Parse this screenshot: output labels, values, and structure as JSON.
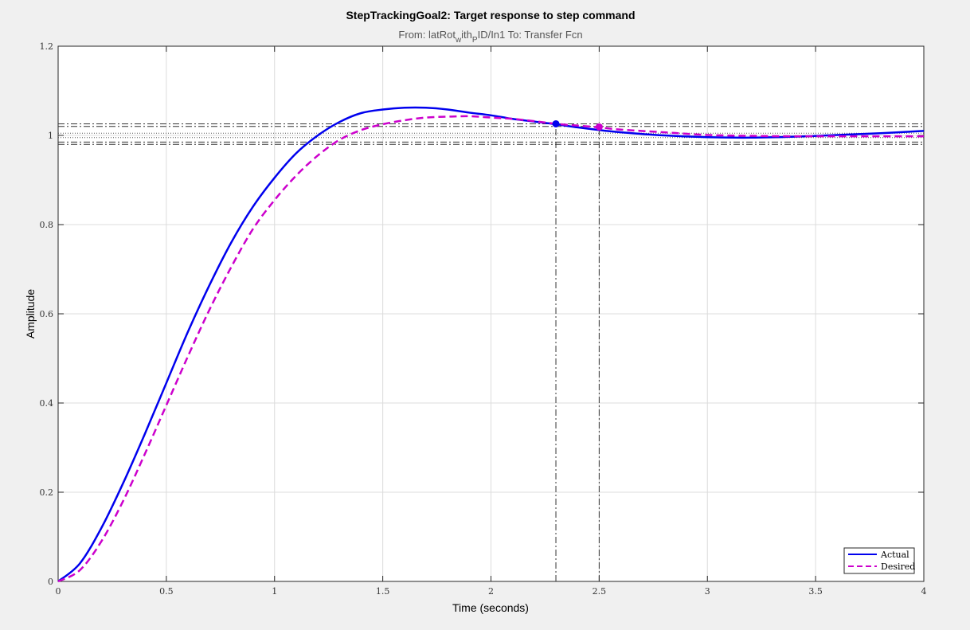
{
  "chart_data": {
    "type": "line",
    "title": "StepTrackingGoal2: Target response to step command",
    "subtitle": {
      "prefix": "From: latRot",
      "sub1": "w",
      "mid": "ith",
      "sub2": "P",
      "suffix": "ID/In1  To: Transfer Fcn"
    },
    "xlabel": "Time (seconds)",
    "ylabel": "Amplitude",
    "xlim": [
      0,
      4
    ],
    "ylim": [
      0,
      1.2
    ],
    "xticks": [
      "0",
      "0.5",
      "1",
      "1.5",
      "2",
      "2.5",
      "3",
      "3.5",
      "4"
    ],
    "yticks": [
      "0",
      "0.2",
      "0.4",
      "0.6",
      "0.8",
      "1",
      "1.2"
    ],
    "grid": true,
    "legend_position": "bottom-right",
    "series": [
      {
        "name": "Actual",
        "color": "#0000ee",
        "style": "solid",
        "x": [
          0,
          0.1,
          0.2,
          0.3,
          0.4,
          0.5,
          0.6,
          0.7,
          0.8,
          0.9,
          1.0,
          1.1,
          1.2,
          1.3,
          1.4,
          1.5,
          1.6,
          1.7,
          1.8,
          1.9,
          2.0,
          2.1,
          2.2,
          2.3,
          2.4,
          2.5,
          2.6,
          2.8,
          3.0,
          3.2,
          3.4,
          3.6,
          3.8,
          4.0
        ],
        "y": [
          0,
          0.04,
          0.12,
          0.22,
          0.33,
          0.445,
          0.56,
          0.665,
          0.76,
          0.84,
          0.905,
          0.96,
          1.0,
          1.03,
          1.05,
          1.058,
          1.062,
          1.062,
          1.058,
          1.051,
          1.045,
          1.037,
          1.031,
          1.025,
          1.018,
          1.012,
          1.007,
          1.0,
          0.996,
          0.995,
          0.997,
          1.001,
          1.005,
          1.01
        ]
      },
      {
        "name": "Desired",
        "color": "#cc00cc",
        "style": "dashed",
        "x": [
          0,
          0.1,
          0.2,
          0.3,
          0.4,
          0.5,
          0.6,
          0.7,
          0.8,
          0.9,
          1.0,
          1.1,
          1.2,
          1.3,
          1.4,
          1.5,
          1.6,
          1.7,
          1.8,
          1.9,
          2.0,
          2.1,
          2.2,
          2.3,
          2.4,
          2.5,
          2.6,
          2.8,
          3.0,
          3.2,
          3.4,
          3.6,
          3.8,
          4.0
        ],
        "y": [
          0,
          0.025,
          0.09,
          0.18,
          0.285,
          0.395,
          0.505,
          0.61,
          0.705,
          0.79,
          0.855,
          0.91,
          0.955,
          0.99,
          1.012,
          1.025,
          1.034,
          1.04,
          1.042,
          1.043,
          1.04,
          1.037,
          1.032,
          1.026,
          1.022,
          1.018,
          1.013,
          1.007,
          1.001,
          0.999,
          0.998,
          0.998,
          0.998,
          0.998
        ]
      }
    ],
    "markers": [
      {
        "x": 2.3,
        "y": 1.026,
        "color": "#0000ee"
      },
      {
        "x": 2.5,
        "y": 1.019,
        "color": "#cc00cc"
      }
    ],
    "hlines_dashdot": [
      0.98,
      0.985,
      1.02,
      1.026
    ],
    "hlines_dotted": [
      0.995,
      1.005
    ],
    "vlines_dashdot": [
      2.3,
      2.5
    ]
  }
}
